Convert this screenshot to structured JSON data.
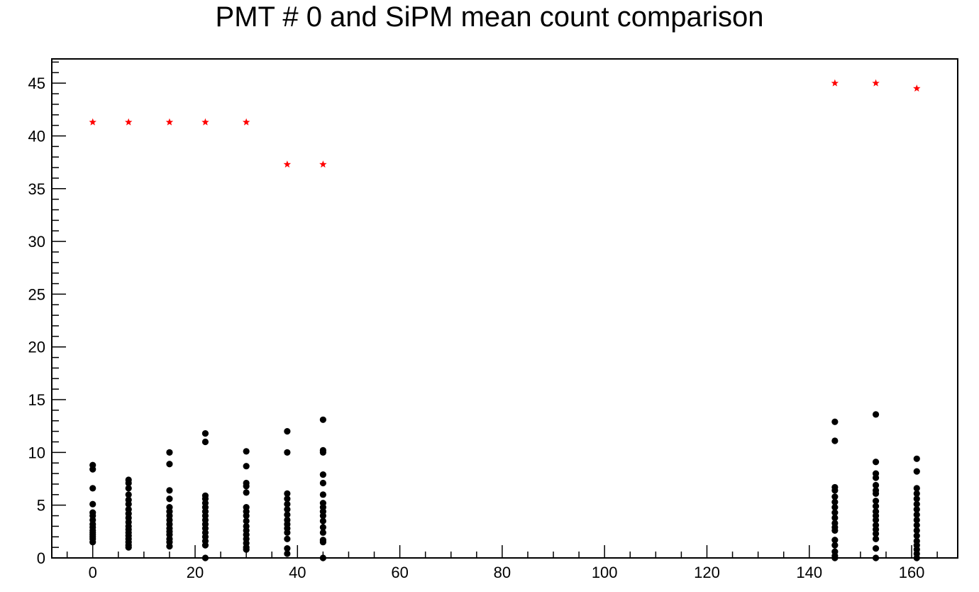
{
  "chart_data": {
    "type": "scatter",
    "title": "PMT # 0 and SiPM mean count comparison",
    "xlabel": "",
    "ylabel": "",
    "xlim": [
      -8,
      169
    ],
    "ylim": [
      0,
      47.3
    ],
    "x_ticks": [
      "0",
      "20",
      "40",
      "60",
      "80",
      "100",
      "120",
      "140",
      "160"
    ],
    "y_ticks": [
      "0",
      "5",
      "10",
      "15",
      "20",
      "25",
      "30",
      "35",
      "40",
      "45"
    ],
    "grid": false,
    "legend": "none",
    "series": [
      {
        "marker": "star",
        "color": "#ff0000",
        "points": [
          [
            0,
            41.3
          ],
          [
            7,
            41.3
          ],
          [
            15,
            41.3
          ],
          [
            22,
            41.3
          ],
          [
            30,
            41.3
          ],
          [
            38,
            37.3
          ],
          [
            45,
            37.3
          ],
          [
            145,
            45.0
          ],
          [
            153,
            45.0
          ],
          [
            161,
            44.5
          ]
        ]
      },
      {
        "marker": "circle",
        "color": "#000000",
        "points": [
          [
            0,
            8.8
          ],
          [
            0,
            8.4
          ],
          [
            0,
            6.6
          ],
          [
            0,
            5.1
          ],
          [
            0,
            4.3
          ],
          [
            0,
            4.0
          ],
          [
            0,
            3.6
          ],
          [
            0,
            3.2
          ],
          [
            0,
            2.9
          ],
          [
            0,
            2.6
          ],
          [
            0,
            2.4
          ],
          [
            0,
            2.2
          ],
          [
            0,
            2.0
          ],
          [
            0,
            1.8
          ],
          [
            0,
            1.5
          ],
          [
            7,
            7.4
          ],
          [
            7,
            7.1
          ],
          [
            7,
            6.6
          ],
          [
            7,
            6.0
          ],
          [
            7,
            5.5
          ],
          [
            7,
            5.1
          ],
          [
            7,
            4.6
          ],
          [
            7,
            4.2
          ],
          [
            7,
            3.8
          ],
          [
            7,
            3.4
          ],
          [
            7,
            3.0
          ],
          [
            7,
            2.7
          ],
          [
            7,
            2.4
          ],
          [
            7,
            2.1
          ],
          [
            7,
            1.8
          ],
          [
            7,
            1.5
          ],
          [
            7,
            1.2
          ],
          [
            7,
            1.0
          ],
          [
            15,
            10.0
          ],
          [
            15,
            8.9
          ],
          [
            15,
            6.4
          ],
          [
            15,
            5.6
          ],
          [
            15,
            4.8
          ],
          [
            15,
            4.4
          ],
          [
            15,
            4.0
          ],
          [
            15,
            3.6
          ],
          [
            15,
            3.2
          ],
          [
            15,
            2.8
          ],
          [
            15,
            2.5
          ],
          [
            15,
            2.2
          ],
          [
            15,
            1.8
          ],
          [
            15,
            1.5
          ],
          [
            15,
            1.1
          ],
          [
            22,
            11.8
          ],
          [
            22,
            11.0
          ],
          [
            22,
            5.9
          ],
          [
            22,
            5.6
          ],
          [
            22,
            5.2
          ],
          [
            22,
            4.8
          ],
          [
            22,
            4.4
          ],
          [
            22,
            4.0
          ],
          [
            22,
            3.6
          ],
          [
            22,
            3.2
          ],
          [
            22,
            2.8
          ],
          [
            22,
            2.4
          ],
          [
            22,
            2.0
          ],
          [
            22,
            1.6
          ],
          [
            22,
            1.2
          ],
          [
            22,
            0.0
          ],
          [
            30,
            10.1
          ],
          [
            30,
            8.7
          ],
          [
            30,
            7.1
          ],
          [
            30,
            6.8
          ],
          [
            30,
            6.2
          ],
          [
            30,
            4.8
          ],
          [
            30,
            4.4
          ],
          [
            30,
            4.0
          ],
          [
            30,
            3.5
          ],
          [
            30,
            3.0
          ],
          [
            30,
            2.6
          ],
          [
            30,
            2.2
          ],
          [
            30,
            1.8
          ],
          [
            30,
            1.4
          ],
          [
            30,
            1.0
          ],
          [
            30,
            0.8
          ],
          [
            38,
            12.0
          ],
          [
            38,
            10.0
          ],
          [
            38,
            6.1
          ],
          [
            38,
            5.6
          ],
          [
            38,
            5.1
          ],
          [
            38,
            4.6
          ],
          [
            38,
            4.1
          ],
          [
            38,
            3.6
          ],
          [
            38,
            3.2
          ],
          [
            38,
            2.8
          ],
          [
            38,
            2.4
          ],
          [
            38,
            1.8
          ],
          [
            38,
            0.9
          ],
          [
            38,
            0.4
          ],
          [
            45,
            13.1
          ],
          [
            45,
            10.2
          ],
          [
            45,
            10.0
          ],
          [
            45,
            7.9
          ],
          [
            45,
            7.1
          ],
          [
            45,
            6.0
          ],
          [
            45,
            5.2
          ],
          [
            45,
            4.8
          ],
          [
            45,
            4.4
          ],
          [
            45,
            4.0
          ],
          [
            45,
            3.5
          ],
          [
            45,
            2.9
          ],
          [
            45,
            2.4
          ],
          [
            45,
            1.7
          ],
          [
            45,
            1.5
          ],
          [
            45,
            0.0
          ],
          [
            145,
            12.9
          ],
          [
            145,
            11.1
          ],
          [
            145,
            6.7
          ],
          [
            145,
            6.4
          ],
          [
            145,
            5.8
          ],
          [
            145,
            5.3
          ],
          [
            145,
            4.8
          ],
          [
            145,
            4.3
          ],
          [
            145,
            3.8
          ],
          [
            145,
            3.3
          ],
          [
            145,
            2.9
          ],
          [
            145,
            2.6
          ],
          [
            145,
            1.7
          ],
          [
            145,
            1.2
          ],
          [
            145,
            0.6
          ],
          [
            145,
            0.2
          ],
          [
            145,
            0.0
          ],
          [
            153,
            13.6
          ],
          [
            153,
            9.1
          ],
          [
            153,
            8.0
          ],
          [
            153,
            7.6
          ],
          [
            153,
            6.9
          ],
          [
            153,
            6.4
          ],
          [
            153,
            6.1
          ],
          [
            153,
            5.4
          ],
          [
            153,
            4.9
          ],
          [
            153,
            4.4
          ],
          [
            153,
            4.0
          ],
          [
            153,
            3.6
          ],
          [
            153,
            3.1
          ],
          [
            153,
            2.7
          ],
          [
            153,
            2.3
          ],
          [
            153,
            1.8
          ],
          [
            153,
            0.9
          ],
          [
            153,
            0.0
          ],
          [
            161,
            9.4
          ],
          [
            161,
            8.2
          ],
          [
            161,
            6.6
          ],
          [
            161,
            6.1
          ],
          [
            161,
            5.6
          ],
          [
            161,
            5.1
          ],
          [
            161,
            4.6
          ],
          [
            161,
            4.1
          ],
          [
            161,
            3.6
          ],
          [
            161,
            3.1
          ],
          [
            161,
            2.6
          ],
          [
            161,
            2.1
          ],
          [
            161,
            1.6
          ],
          [
            161,
            1.2
          ],
          [
            161,
            0.8
          ],
          [
            161,
            0.4
          ],
          [
            161,
            0.0
          ]
        ]
      }
    ]
  }
}
